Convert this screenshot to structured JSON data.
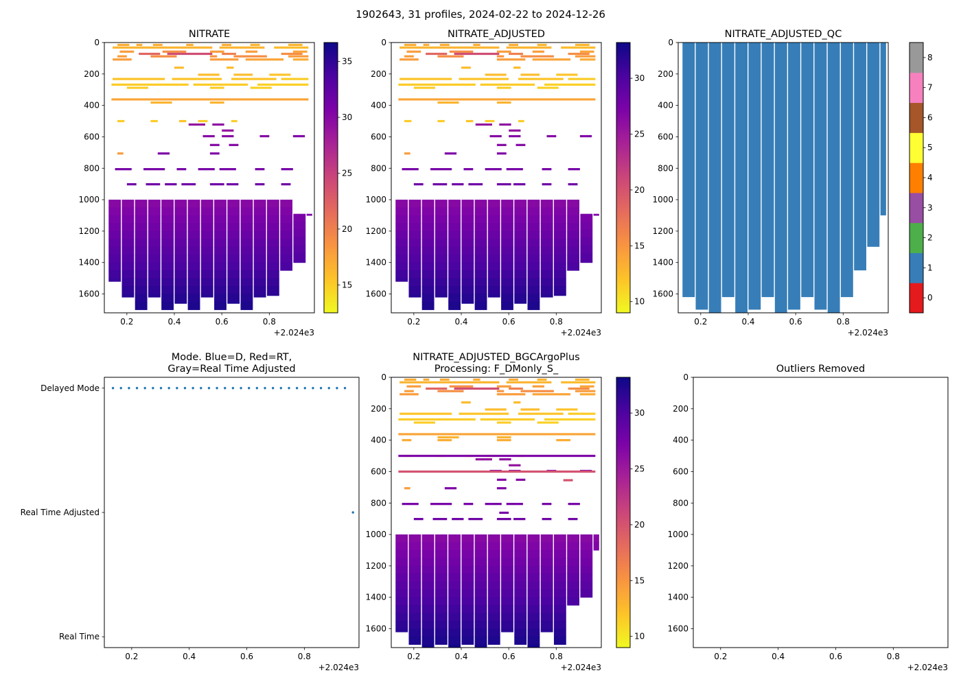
{
  "suptitle": "1902643, 31 profiles, 2024-02-22 to 2024-12-26",
  "chart_data": {
    "type": "heatmap",
    "layout_hint": "2x3 grid of matplotlib-style subplots, depth (dbar) on inverted y axis, decimal year on x axis",
    "x_axis": {
      "lim": [
        2024.105,
        2024.99
      ],
      "ticks": [
        2024.2,
        2024.4,
        2024.6,
        2024.8
      ],
      "tick_labels": [
        "0.2",
        "0.4",
        "0.6",
        "0.8"
      ],
      "offset_label": "+2.024e3"
    },
    "y_axis": {
      "lim": [
        0,
        1720
      ],
      "ticks": [
        0,
        200,
        400,
        600,
        800,
        1000,
        1200,
        1400,
        1600
      ]
    },
    "profile_time_start": 2024.135,
    "profile_step": 0.0278,
    "profile_count": 31,
    "panels": [
      {
        "id": "nitrate",
        "plot": "pcolor",
        "title": "NITRATE",
        "colormap": "plasma_r",
        "vmin": 12.5,
        "vmax": 36.7,
        "value_offset": 0,
        "colorbar": {
          "ticks": [
            15,
            20,
            25,
            30,
            35
          ]
        },
        "dashes": [
          [
            15,
            2024.16,
            2024.21,
            17
          ],
          [
            15,
            2024.24,
            2024.265,
            17
          ],
          [
            15,
            2024.31,
            2024.35,
            17
          ],
          [
            15,
            2024.45,
            2024.48,
            17
          ],
          [
            15,
            2024.6,
            2024.64,
            17
          ],
          [
            15,
            2024.72,
            2024.76,
            16.5
          ],
          [
            15,
            2024.88,
            2024.94,
            16.5
          ],
          [
            32,
            2024.14,
            2024.56,
            16.5
          ],
          [
            32,
            2024.59,
            2024.78,
            16.5
          ],
          [
            32,
            2024.82,
            2024.965,
            16
          ],
          [
            58,
            2024.17,
            2024.23,
            18
          ],
          [
            58,
            2024.35,
            2024.45,
            19
          ],
          [
            58,
            2024.55,
            2024.61,
            18
          ],
          [
            58,
            2024.7,
            2024.75,
            18
          ],
          [
            58,
            2024.9,
            2024.96,
            17.5
          ],
          [
            72,
            2024.25,
            2024.34,
            22
          ],
          [
            72,
            2024.37,
            2024.56,
            24
          ],
          [
            72,
            2024.6,
            2024.66,
            20
          ],
          [
            72,
            2024.85,
            2024.94,
            19
          ],
          [
            88,
            2024.16,
            2024.2,
            18
          ],
          [
            88,
            2024.3,
            2024.41,
            19
          ],
          [
            88,
            2024.55,
            2024.58,
            18.5
          ],
          [
            88,
            2024.65,
            2024.79,
            19
          ],
          [
            88,
            2024.88,
            2024.965,
            18
          ],
          [
            108,
            2024.14,
            2024.22,
            18
          ],
          [
            108,
            2024.55,
            2024.67,
            18
          ],
          [
            108,
            2024.7,
            2024.86,
            17.5
          ],
          [
            108,
            2024.9,
            2024.965,
            17
          ],
          [
            160,
            2024.4,
            2024.44,
            16
          ],
          [
            160,
            2024.62,
            2024.65,
            16
          ],
          [
            205,
            2024.5,
            2024.59,
            16
          ],
          [
            205,
            2024.65,
            2024.73,
            16
          ],
          [
            205,
            2024.8,
            2024.89,
            15.5
          ],
          [
            232,
            2024.14,
            2024.36,
            15.5
          ],
          [
            232,
            2024.39,
            2024.6,
            15.5
          ],
          [
            232,
            2024.64,
            2024.83,
            15.5
          ],
          [
            232,
            2024.85,
            2024.965,
            15
          ],
          [
            268,
            2024.135,
            2024.46,
            15
          ],
          [
            268,
            2024.48,
            2024.71,
            15
          ],
          [
            268,
            2024.75,
            2024.965,
            14.8
          ],
          [
            288,
            2024.2,
            2024.29,
            15
          ],
          [
            288,
            2024.55,
            2024.61,
            15
          ],
          [
            288,
            2024.72,
            2024.81,
            14.8
          ],
          [
            362,
            2024.135,
            2024.965,
            17.5
          ],
          [
            382,
            2024.3,
            2024.39,
            16.5
          ],
          [
            382,
            2024.55,
            2024.61,
            16.5
          ],
          [
            500,
            2024.16,
            2024.19,
            15
          ],
          [
            500,
            2024.3,
            2024.33,
            15
          ],
          [
            500,
            2024.42,
            2024.45,
            15.5
          ],
          [
            500,
            2024.5,
            2024.54,
            15
          ],
          [
            500,
            2024.64,
            2024.665,
            15
          ],
          [
            522,
            2024.46,
            2024.53,
            29
          ],
          [
            522,
            2024.56,
            2024.61,
            29.5
          ],
          [
            560,
            2024.6,
            2024.65,
            29
          ],
          [
            596,
            2024.52,
            2024.57,
            30
          ],
          [
            596,
            2024.6,
            2024.65,
            30
          ],
          [
            596,
            2024.76,
            2024.8,
            30
          ],
          [
            596,
            2024.9,
            2024.95,
            30.5
          ],
          [
            652,
            2024.55,
            2024.59,
            30
          ],
          [
            652,
            2024.63,
            2024.67,
            30
          ],
          [
            706,
            2024.16,
            2024.185,
            18
          ],
          [
            706,
            2024.33,
            2024.38,
            30.5
          ],
          [
            706,
            2024.55,
            2024.59,
            30.5
          ],
          [
            806,
            2024.15,
            2024.22,
            31
          ],
          [
            806,
            2024.27,
            2024.36,
            31
          ],
          [
            806,
            2024.41,
            2024.45,
            31
          ],
          [
            806,
            2024.5,
            2024.57,
            31
          ],
          [
            806,
            2024.59,
            2024.66,
            31
          ],
          [
            806,
            2024.74,
            2024.78,
            31
          ],
          [
            806,
            2024.85,
            2024.9,
            31
          ],
          [
            902,
            2024.2,
            2024.24,
            31.5
          ],
          [
            902,
            2024.28,
            2024.34,
            31.5
          ],
          [
            902,
            2024.36,
            2024.41,
            31.5
          ],
          [
            902,
            2024.43,
            2024.49,
            31.5
          ],
          [
            902,
            2024.55,
            2024.61,
            31.5
          ],
          [
            902,
            2024.62,
            2024.67,
            31.5
          ],
          [
            902,
            2024.74,
            2024.78,
            31.5
          ],
          [
            902,
            2024.85,
            2024.89,
            31.5
          ]
        ],
        "deep": {
          "row_step": 50,
          "top_value": 29.8,
          "bottom_value": 36.2,
          "groups": [
            [
              0,
              1,
              1000,
              1520
            ],
            [
              2,
              3,
              1000,
              1620
            ],
            [
              4,
              5,
              1000,
              1700
            ],
            [
              6,
              7,
              1000,
              1620
            ],
            [
              8,
              9,
              1000,
              1700
            ],
            [
              10,
              11,
              1000,
              1660
            ],
            [
              12,
              13,
              1000,
              1700
            ],
            [
              14,
              15,
              1000,
              1620
            ],
            [
              16,
              17,
              1000,
              1700
            ],
            [
              18,
              19,
              1000,
              1660
            ],
            [
              20,
              21,
              1000,
              1700
            ],
            [
              22,
              23,
              1000,
              1620
            ],
            [
              24,
              25,
              1000,
              1610
            ],
            [
              26,
              27,
              1000,
              1450
            ],
            [
              28,
              29,
              1090,
              1400
            ],
            [
              30,
              30,
              1090,
              1100
            ]
          ]
        }
      },
      {
        "id": "nitrate_adjusted",
        "plot": "pcolor",
        "title": "NITRATE_ADJUSTED",
        "colormap": "plasma_r",
        "vmin": 9.0,
        "vmax": 33.2,
        "value_offset": -3.5,
        "colorbar": {
          "ticks": [
            10,
            15,
            20,
            25,
            30
          ]
        },
        "dashes_from": "nitrate",
        "deep_from": "nitrate"
      },
      {
        "id": "nitrate_adjusted_qc",
        "plot": "qc",
        "title": "NITRATE_ADJUSTED_QC",
        "qc_value": 1,
        "palette": [
          "#e41a1c",
          "#377eb8",
          "#4daf4a",
          "#984ea3",
          "#ff7f00",
          "#ffff33",
          "#a65628",
          "#f781bf",
          "#999999"
        ],
        "colorbar": {
          "ticks": [
            0,
            1,
            2,
            3,
            4,
            5,
            6,
            7,
            8
          ]
        },
        "groups": [
          [
            0,
            1,
            0,
            1620
          ],
          [
            2,
            3,
            0,
            1700
          ],
          [
            4,
            5,
            0,
            1720
          ],
          [
            6,
            7,
            0,
            1620
          ],
          [
            8,
            9,
            0,
            1720
          ],
          [
            10,
            11,
            0,
            1700
          ],
          [
            12,
            13,
            0,
            1620
          ],
          [
            14,
            15,
            0,
            1720
          ],
          [
            16,
            17,
            0,
            1700
          ],
          [
            18,
            19,
            0,
            1620
          ],
          [
            20,
            21,
            0,
            1700
          ],
          [
            22,
            23,
            0,
            1720
          ],
          [
            24,
            25,
            0,
            1620
          ],
          [
            26,
            27,
            0,
            1450
          ],
          [
            28,
            29,
            0,
            1300
          ],
          [
            30,
            30,
            0,
            1100
          ]
        ]
      },
      {
        "id": "mode",
        "plot": "mode",
        "title_lines": [
          "Mode. Blue=D, Red=RT,",
          "Gray=Real Time Adjusted"
        ],
        "categories": [
          "Real Time",
          "Real Time Adjusted",
          "Delayed Mode"
        ],
        "dot_color": "#1f77b4",
        "delayed_profile_range": [
          0,
          29
        ],
        "real_time_adjusted_profile_range": [
          30,
          30
        ]
      },
      {
        "id": "nitrate_adjusted_bgcargoplus",
        "plot": "pcolor",
        "title_lines": [
          "NITRATE_ADJUSTED_BGCArgoPlus",
          "Processing: F_DMonly_S_"
        ],
        "colormap": "plasma_r",
        "vmin": 9.0,
        "vmax": 33.2,
        "value_offset": -3.5,
        "colorbar": {
          "ticks": [
            10,
            15,
            20,
            25,
            30
          ]
        },
        "dashes_from": "nitrate",
        "extra_dashes": [
          [
            400,
            2024.15,
            2024.19,
            17
          ],
          [
            400,
            2024.3,
            2024.36,
            17
          ],
          [
            400,
            2024.55,
            2024.61,
            17
          ],
          [
            400,
            2024.8,
            2024.86,
            17
          ],
          [
            500,
            2024.135,
            2024.965,
            30.5
          ],
          [
            600,
            2024.135,
            2024.965,
            23.5
          ],
          [
            655,
            2024.83,
            2024.87,
            23.5
          ],
          [
            862,
            2024.56,
            2024.6,
            31
          ]
        ],
        "deep": {
          "row_step": 50,
          "top_value": 29.8,
          "bottom_value": 36.2,
          "groups": [
            [
              0,
              1,
              1000,
              1620
            ],
            [
              2,
              3,
              1000,
              1700
            ],
            [
              4,
              5,
              1000,
              1720
            ],
            [
              6,
              7,
              1000,
              1700
            ],
            [
              8,
              9,
              1000,
              1720
            ],
            [
              10,
              11,
              1000,
              1700
            ],
            [
              12,
              13,
              1000,
              1720
            ],
            [
              14,
              15,
              1000,
              1700
            ],
            [
              16,
              17,
              1000,
              1620
            ],
            [
              18,
              19,
              1000,
              1700
            ],
            [
              20,
              21,
              1000,
              1720
            ],
            [
              22,
              23,
              1000,
              1620
            ],
            [
              24,
              25,
              1000,
              1700
            ],
            [
              26,
              27,
              1000,
              1450
            ],
            [
              28,
              29,
              1000,
              1400
            ],
            [
              30,
              30,
              1000,
              1100
            ]
          ]
        }
      },
      {
        "id": "outliers_removed",
        "plot": "empty",
        "title": "Outliers Removed"
      }
    ]
  }
}
